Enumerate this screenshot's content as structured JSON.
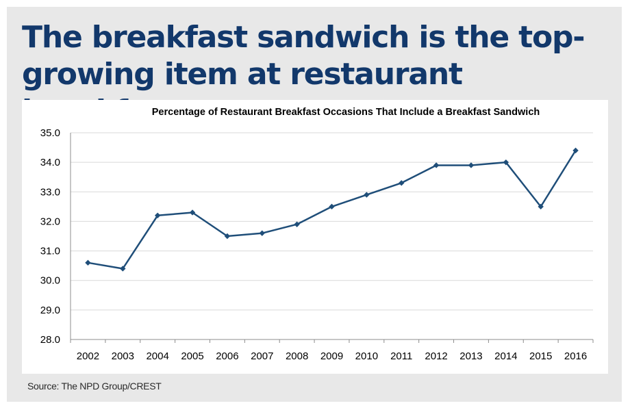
{
  "headline": "The breakfast sandwich is the top-growing item at restaurant breakfasts",
  "source": "Source: The NPD Group/CREST",
  "colors": {
    "line": "#1f4e79",
    "headline": "#12386b",
    "panel": "#e8e8e8",
    "grid": "#d9d9d9"
  },
  "chart_data": {
    "type": "line",
    "title": "Percentage of Restaurant Breakfast Occasions That Include a Breakfast Sandwich",
    "xlabel": "",
    "ylabel": "",
    "categories": [
      "2002",
      "2003",
      "2004",
      "2005",
      "2006",
      "2007",
      "2008",
      "2009",
      "2010",
      "2011",
      "2012",
      "2013",
      "2014",
      "2015",
      "2016"
    ],
    "series": [
      {
        "values": [
          30.6,
          30.4,
          32.2,
          32.3,
          31.5,
          31.6,
          31.9,
          32.5,
          32.9,
          33.3,
          33.9,
          33.9,
          34.0,
          32.5,
          34.4
        ]
      }
    ],
    "ylim": [
      28.0,
      35.0
    ],
    "yticks": [
      "28.0",
      "29.0",
      "30.0",
      "31.0",
      "32.0",
      "33.0",
      "34.0",
      "35.0"
    ],
    "grid": true,
    "legend": "none"
  }
}
